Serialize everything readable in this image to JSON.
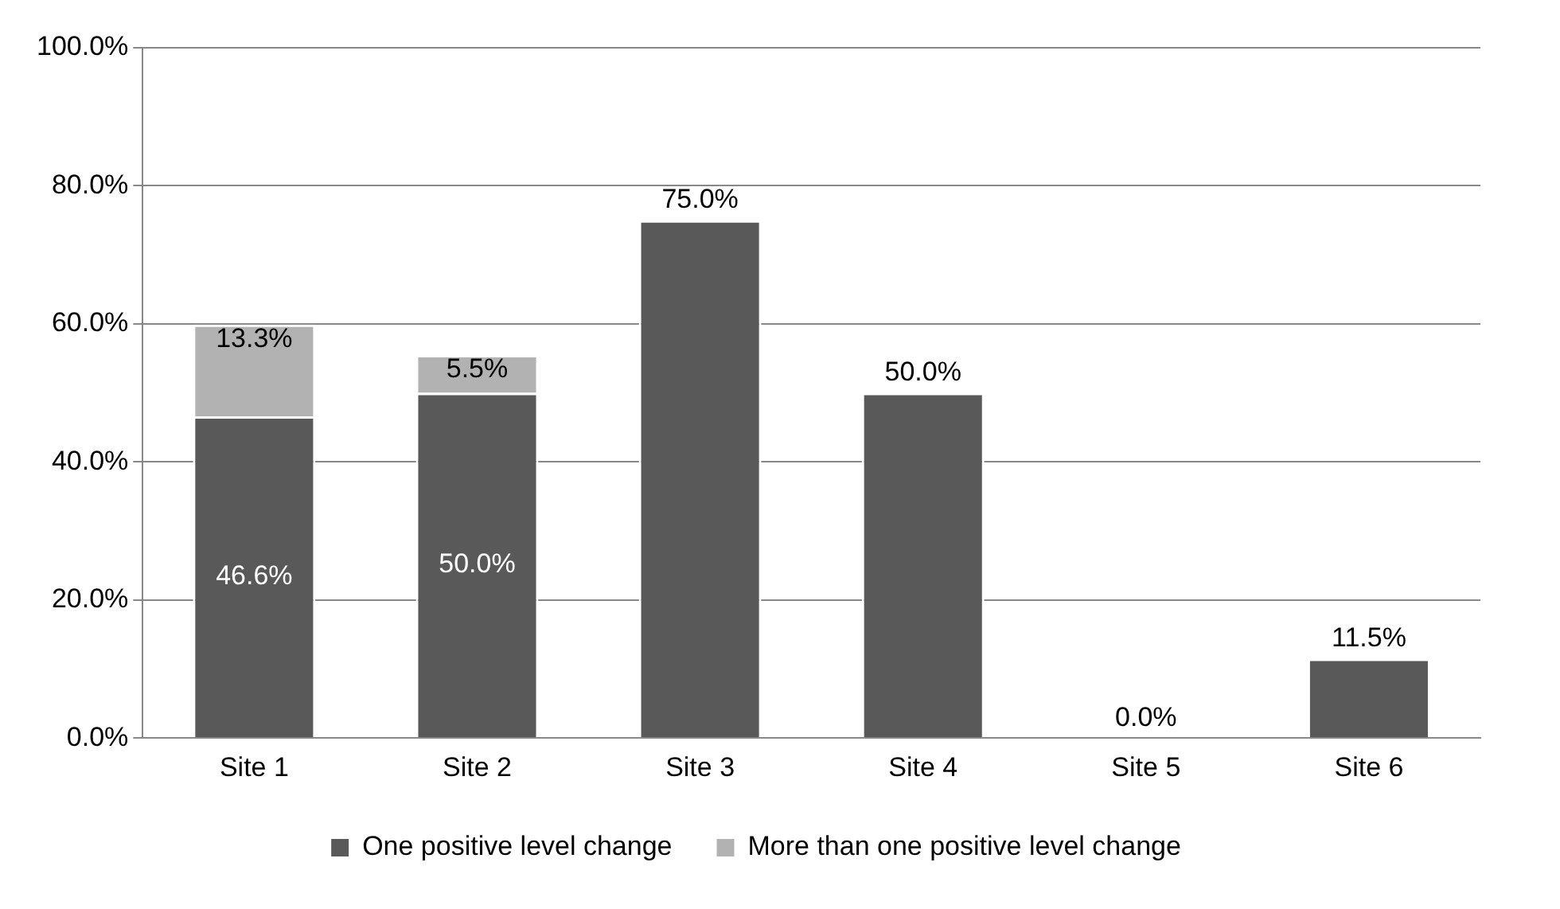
{
  "chart_data": {
    "type": "bar",
    "stacked": true,
    "categories": [
      "Site 1",
      "Site 2",
      "Site 3",
      "Site 4",
      "Site 5",
      "Site 6"
    ],
    "series": [
      {
        "name": "One positive level change",
        "color": "#595959",
        "values": [
          46.6,
          50.0,
          75.0,
          50.0,
          0.0,
          11.5
        ],
        "value_labels": [
          "46.6%",
          "50.0%",
          "75.0%",
          "50.0%",
          "0.0%",
          "11.5%"
        ]
      },
      {
        "name": "More than one positive level change",
        "color": "#b2b2b2",
        "values": [
          13.3,
          5.5,
          null,
          null,
          null,
          null
        ],
        "value_labels": [
          "13.3%",
          "5.5%",
          null,
          null,
          null,
          null
        ]
      }
    ],
    "ylim": [
      0,
      100
    ],
    "yticks": [
      {
        "value": 0,
        "label": "0.0%"
      },
      {
        "value": 20,
        "label": "20.0%"
      },
      {
        "value": 40,
        "label": "40.0%"
      },
      {
        "value": 60,
        "label": "60.0%"
      },
      {
        "value": 80,
        "label": "80.0%"
      },
      {
        "value": 100,
        "label": "100.0%"
      }
    ],
    "grid": "y",
    "legend": "bottom"
  }
}
